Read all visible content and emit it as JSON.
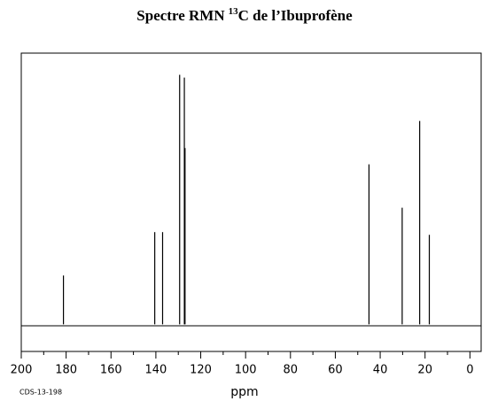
{
  "chart_data": {
    "type": "spectrum",
    "title": {
      "before": "Spectre RMN",
      "superscript": "13",
      "after": "C de l’Ibuprofène"
    },
    "x_label": "ppm",
    "note": "CDS-13-198",
    "x": [
      181.2,
      140.5,
      137.0,
      129.4,
      127.3,
      127.0,
      45.0,
      30.2,
      22.4,
      18.1
    ],
    "values": [
      18,
      34,
      34,
      92,
      91,
      65,
      59,
      43,
      75,
      33
    ],
    "color": "#000000",
    "xlim": [
      200,
      -5
    ],
    "xticks": [
      200,
      180,
      160,
      140,
      120,
      100,
      80,
      60,
      40,
      20,
      0
    ],
    "xminorticks": [
      190,
      170,
      150,
      130,
      110,
      90,
      70,
      50,
      30,
      10
    ],
    "ylim": [
      -10,
      100
    ]
  }
}
